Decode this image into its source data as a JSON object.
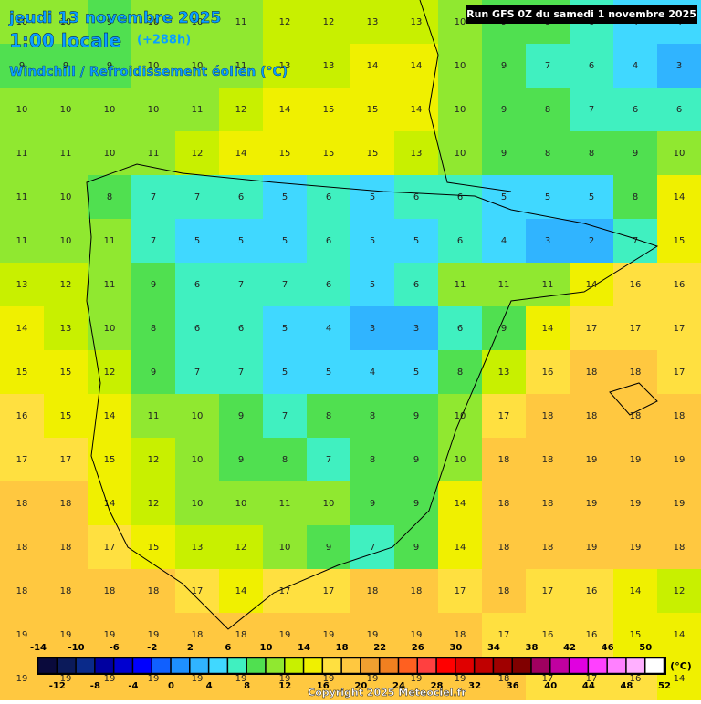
{
  "header": {
    "date": "jeudi 13 novembre 2025",
    "time": "1:00 locale",
    "lead": "(+288h)",
    "field": "Windchill / Refroidissement éolien (°C)",
    "run": "Run GFS 0Z du samedi 1 novembre 2025"
  },
  "map": {
    "grid": [
      [
        10,
        10,
        9,
        10,
        10,
        11,
        12,
        12,
        13,
        13,
        10,
        9,
        8,
        6,
        4,
        4
      ],
      [
        9,
        9,
        9,
        10,
        10,
        11,
        13,
        13,
        14,
        14,
        10,
        9,
        7,
        6,
        4,
        3
      ],
      [
        10,
        10,
        10,
        10,
        11,
        12,
        14,
        15,
        15,
        14,
        10,
        9,
        8,
        7,
        6,
        6
      ],
      [
        11,
        11,
        10,
        11,
        12,
        14,
        15,
        15,
        15,
        13,
        10,
        9,
        8,
        8,
        9,
        10
      ],
      [
        11,
        10,
        8,
        7,
        7,
        6,
        5,
        6,
        5,
        6,
        6,
        5,
        5,
        5,
        8,
        14
      ],
      [
        11,
        10,
        11,
        7,
        5,
        5,
        5,
        6,
        5,
        5,
        6,
        4,
        3,
        2,
        7,
        15
      ],
      [
        13,
        12,
        11,
        9,
        6,
        7,
        7,
        6,
        5,
        6,
        11,
        11,
        11,
        14,
        16,
        16
      ],
      [
        14,
        13,
        10,
        8,
        6,
        6,
        5,
        4,
        3,
        3,
        6,
        9,
        14,
        17,
        17,
        17
      ],
      [
        15,
        15,
        12,
        9,
        7,
        7,
        5,
        5,
        4,
        5,
        8,
        13,
        16,
        18,
        18,
        17
      ],
      [
        16,
        15,
        14,
        11,
        10,
        9,
        7,
        8,
        8,
        9,
        10,
        17,
        18,
        18,
        18,
        18
      ],
      [
        17,
        17,
        15,
        12,
        10,
        9,
        8,
        7,
        8,
        9,
        10,
        18,
        18,
        19,
        19,
        19
      ],
      [
        18,
        18,
        14,
        12,
        10,
        10,
        11,
        10,
        9,
        9,
        14,
        18,
        18,
        19,
        19,
        19
      ],
      [
        18,
        18,
        17,
        15,
        13,
        12,
        10,
        9,
        7,
        9,
        14,
        18,
        18,
        19,
        19,
        18
      ],
      [
        18,
        18,
        18,
        18,
        17,
        14,
        17,
        17,
        18,
        18,
        17,
        18,
        17,
        16,
        14,
        12
      ],
      [
        19,
        19,
        19,
        19,
        18,
        18,
        19,
        19,
        19,
        19,
        18,
        17,
        16,
        16,
        15,
        14
      ],
      [
        19,
        19,
        19,
        19,
        19,
        19,
        19,
        19,
        19,
        19,
        19,
        18,
        17,
        17,
        16,
        14
      ]
    ]
  },
  "legend": {
    "ticks": [
      -14,
      -12,
      -10,
      -8,
      -6,
      -4,
      -2,
      0,
      2,
      4,
      6,
      8,
      10,
      12,
      14,
      16,
      18,
      20,
      22,
      24,
      26,
      28,
      30,
      32,
      34,
      36,
      38,
      40,
      42,
      44,
      46,
      48,
      50,
      52
    ],
    "colors": [
      "#0a0a3c",
      "#0b1a5a",
      "#0a2a8a",
      "#0000a0",
      "#0000d0",
      "#0000ff",
      "#1060ff",
      "#1e90ff",
      "#30b4ff",
      "#40d8ff",
      "#40f0c0",
      "#50e050",
      "#90e830",
      "#c8f000",
      "#f0f000",
      "#ffe040",
      "#ffc840",
      "#f0a030",
      "#f08020",
      "#ff6020",
      "#ff4040",
      "#ff0000",
      "#e00000",
      "#c00000",
      "#a00000",
      "#800000",
      "#a00060",
      "#c000a0",
      "#e000e0",
      "#ff40ff",
      "#ff80ff",
      "#ffb0ff",
      "#ffffff"
    ],
    "unit": "(°C)"
  },
  "footer": {
    "copyright": "Copyright 2025 Meteociel.fr"
  }
}
